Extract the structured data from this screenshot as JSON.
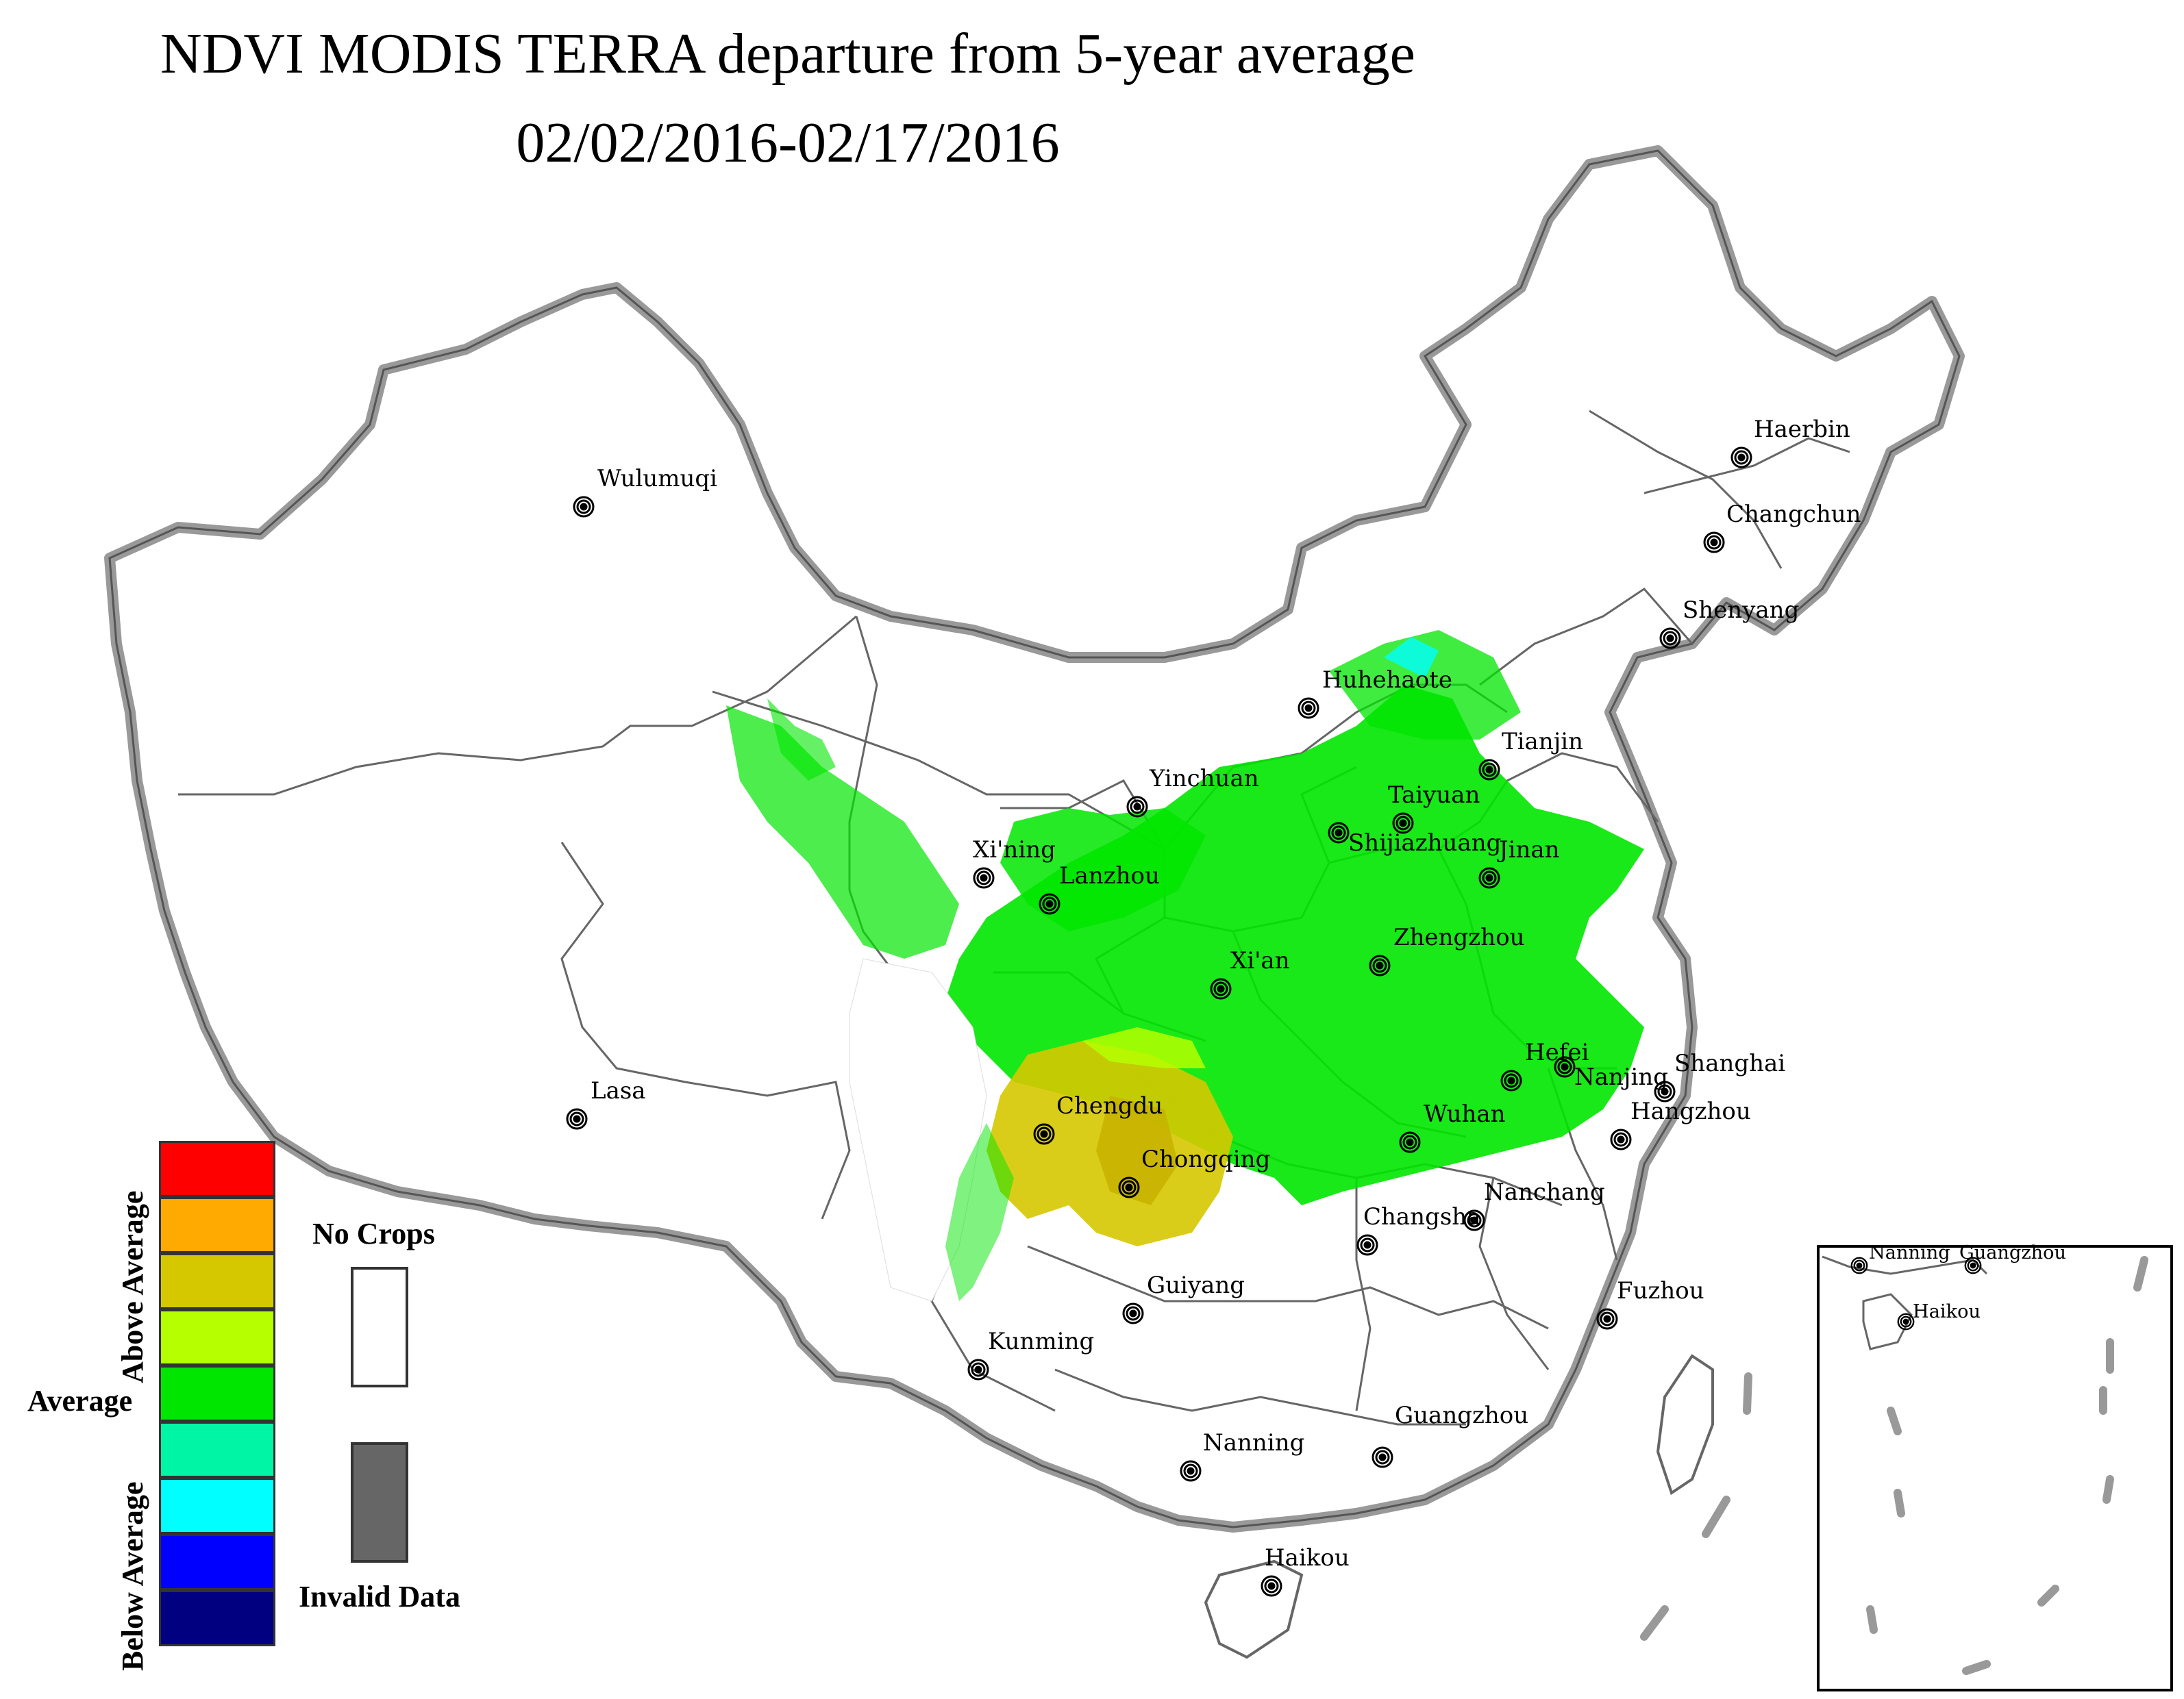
{
  "map": {
    "title_line1": "NDVI MODIS TERRA departure from 5-year average",
    "title_line2": "02/02/2016-02/17/2016"
  },
  "cities": [
    {
      "name": "Wulumuqi"
    },
    {
      "name": "Haerbin"
    },
    {
      "name": "Changchun"
    },
    {
      "name": "Shenyang"
    },
    {
      "name": "Huhehaote"
    },
    {
      "name": "Tianjin"
    },
    {
      "name": "Yinchuan"
    },
    {
      "name": "Taiyuan"
    },
    {
      "name": "Shijiazhuang"
    },
    {
      "name": "Jinan"
    },
    {
      "name": "Xi'ning"
    },
    {
      "name": "Lanzhou"
    },
    {
      "name": "Zhengzhou"
    },
    {
      "name": "Xi'an"
    },
    {
      "name": "Hefei"
    },
    {
      "name": "Nanjing"
    },
    {
      "name": "Shanghai"
    },
    {
      "name": "Lasa"
    },
    {
      "name": "Chengdu"
    },
    {
      "name": "Wuhan"
    },
    {
      "name": "Hangzhou"
    },
    {
      "name": "Chongqing"
    },
    {
      "name": "Nanchang"
    },
    {
      "name": "Changsha"
    },
    {
      "name": "Guiyang"
    },
    {
      "name": "Fuzhou"
    },
    {
      "name": "Kunming"
    },
    {
      "name": "Guangzhou"
    },
    {
      "name": "Nanning"
    },
    {
      "name": "Haikou"
    }
  ],
  "inset": {
    "cities": [
      {
        "name": "Nanning"
      },
      {
        "name": "Guangzhou"
      },
      {
        "name": "Haikou"
      }
    ]
  },
  "legend": {
    "above_label": "Above Average",
    "average_label": "Average",
    "below_label": "Below Average",
    "no_crops_label": "No Crops",
    "invalid_label": "Invalid Data",
    "color_classes": [
      "#ff0000",
      "#ffaa00",
      "#d6c800",
      "#b5ff00",
      "#00e600",
      "#00f5a5",
      "#00ffff",
      "#0000ff",
      "#000080"
    ],
    "no_crops_color": "#ffffff",
    "invalid_color": "#666666"
  }
}
